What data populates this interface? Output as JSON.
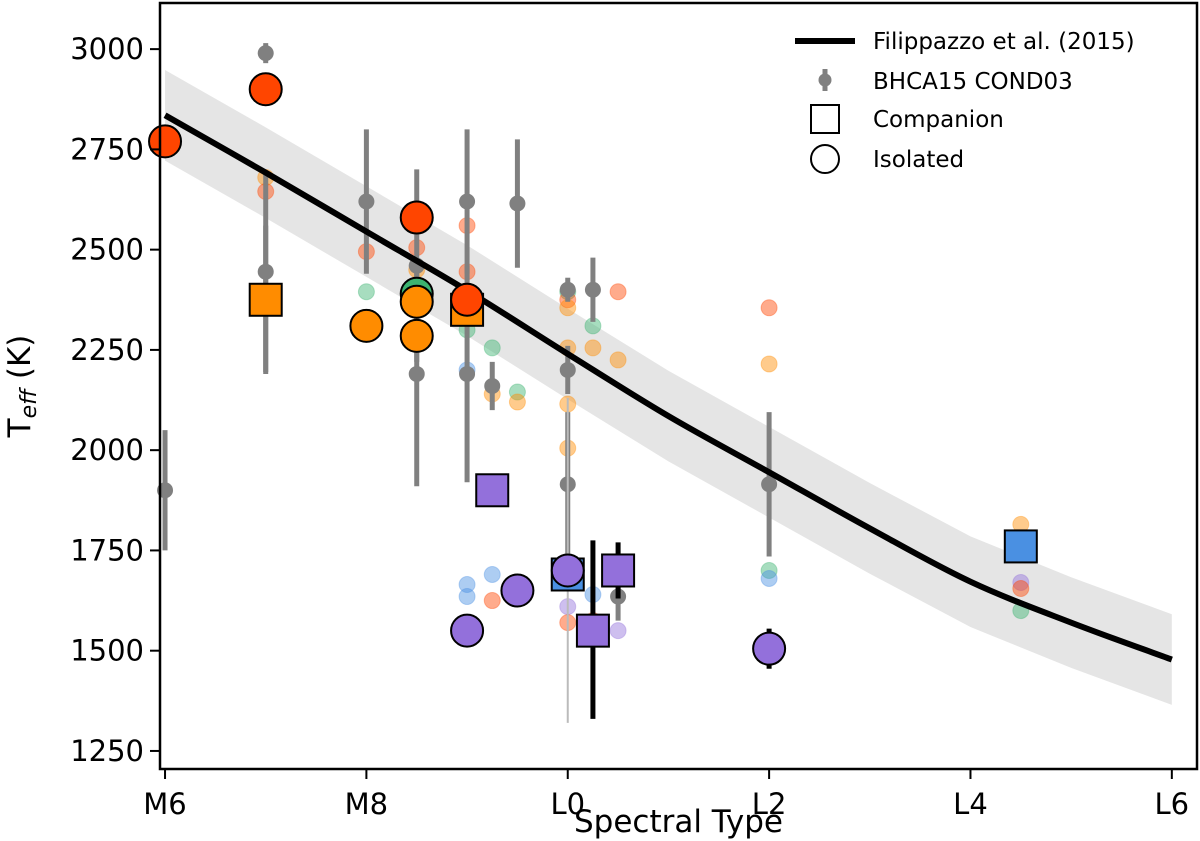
{
  "chart_data": {
    "type": "scatter",
    "title": "",
    "xlabel": "Spectral Type",
    "ylabel": {
      "main": "T",
      "sub": "eff",
      "unit": " (K)"
    },
    "xlim": [
      5.95,
      16.25
    ],
    "ylim": [
      1205,
      3115
    ],
    "xticks": [
      {
        "value": 6,
        "label": "M6"
      },
      {
        "value": 8,
        "label": "M8"
      },
      {
        "value": 10,
        "label": "L0"
      },
      {
        "value": 12,
        "label": "L2"
      },
      {
        "value": 14,
        "label": "L4"
      },
      {
        "value": 16,
        "label": "L6"
      }
    ],
    "yticks": [
      {
        "value": 1250,
        "label": "1250"
      },
      {
        "value": 1500,
        "label": "1500"
      },
      {
        "value": 1750,
        "label": "1750"
      },
      {
        "value": 2000,
        "label": "2000"
      },
      {
        "value": 2250,
        "label": "2250"
      },
      {
        "value": 2500,
        "label": "2500"
      },
      {
        "value": 2750,
        "label": "2750"
      },
      {
        "value": 3000,
        "label": "3000"
      }
    ],
    "colors": {
      "red": "#ff4500",
      "orange": "#ff8c00",
      "purple": "#9370db",
      "blue": "#4a90e2",
      "green": "#3cb371",
      "gray": "#808080",
      "fit": "#000000",
      "band": "#e5e5e5"
    },
    "fit": {
      "name": "Filippazzo et al. (2015)",
      "uncertainty": 113,
      "points": [
        [
          6.0,
          2835
        ],
        [
          7.0,
          2692
        ],
        [
          8.0,
          2545
        ],
        [
          9.0,
          2398
        ],
        [
          10.0,
          2240
        ],
        [
          11.0,
          2085
        ],
        [
          12.0,
          1945
        ],
        [
          13.0,
          1805
        ],
        [
          14.0,
          1672
        ],
        [
          15.0,
          1570
        ],
        [
          16.0,
          1478
        ]
      ]
    },
    "bhca15": {
      "name": "BHCA15 COND03",
      "points": [
        {
          "x": 7.0,
          "y": 2990,
          "err": 25
        },
        {
          "x": 7.0,
          "y": 2445,
          "err": 250
        },
        {
          "x": 6.0,
          "y": 1900,
          "err": 150
        },
        {
          "x": 8.0,
          "y": 2620,
          "err": 180
        },
        {
          "x": 8.5,
          "y": 2460,
          "err": 240
        },
        {
          "x": 8.5,
          "y": 2190,
          "err": 280
        },
        {
          "x": 9.0,
          "y": 2620,
          "err": 180
        },
        {
          "x": 9.0,
          "y": 2190,
          "err": 270
        },
        {
          "x": 9.5,
          "y": 2615,
          "err": 160
        },
        {
          "x": 9.25,
          "y": 2160,
          "err": 60
        },
        {
          "x": 10.0,
          "y": 2400,
          "err": 30
        },
        {
          "x": 10.0,
          "y": 2200,
          "err": 60
        },
        {
          "x": 10.0,
          "y": 1915,
          "err": 180
        },
        {
          "x": 10.25,
          "y": 2400,
          "err": 80
        },
        {
          "x": 10.5,
          "y": 1635,
          "err": 60
        },
        {
          "x": 12.0,
          "y": 1915,
          "err": 180
        }
      ]
    },
    "faint_points": [
      {
        "x": 7.0,
        "y": 2680,
        "color": "orange"
      },
      {
        "x": 7.0,
        "y": 2645,
        "color": "red"
      },
      {
        "x": 8.0,
        "y": 2495,
        "color": "red"
      },
      {
        "x": 8.0,
        "y": 2395,
        "color": "green"
      },
      {
        "x": 8.5,
        "y": 2505,
        "color": "red"
      },
      {
        "x": 8.5,
        "y": 2450,
        "color": "orange"
      },
      {
        "x": 9.0,
        "y": 2560,
        "color": "red"
      },
      {
        "x": 9.0,
        "y": 2445,
        "color": "red"
      },
      {
        "x": 9.0,
        "y": 2300,
        "color": "green"
      },
      {
        "x": 9.0,
        "y": 2200,
        "color": "blue"
      },
      {
        "x": 9.25,
        "y": 2255,
        "color": "green"
      },
      {
        "x": 9.25,
        "y": 2140,
        "color": "orange"
      },
      {
        "x": 9.5,
        "y": 2145,
        "color": "green"
      },
      {
        "x": 9.5,
        "y": 2120,
        "color": "orange"
      },
      {
        "x": 10.0,
        "y": 2395,
        "color": "green"
      },
      {
        "x": 10.0,
        "y": 2375,
        "color": "red"
      },
      {
        "x": 10.0,
        "y": 2355,
        "color": "orange"
      },
      {
        "x": 10.0,
        "y": 2255,
        "color": "orange"
      },
      {
        "x": 10.0,
        "y": 2115,
        "color": "orange"
      },
      {
        "x": 10.0,
        "y": 2005,
        "color": "orange"
      },
      {
        "x": 10.25,
        "y": 2310,
        "color": "green"
      },
      {
        "x": 10.25,
        "y": 2255,
        "color": "orange"
      },
      {
        "x": 10.5,
        "y": 2395,
        "color": "red"
      },
      {
        "x": 10.5,
        "y": 2225,
        "color": "orange"
      },
      {
        "x": 9.0,
        "y": 1665,
        "color": "blue"
      },
      {
        "x": 9.0,
        "y": 1635,
        "color": "blue"
      },
      {
        "x": 9.25,
        "y": 1690,
        "color": "blue"
      },
      {
        "x": 9.25,
        "y": 1625,
        "color": "red"
      },
      {
        "x": 10.0,
        "y": 1610,
        "color": "purple"
      },
      {
        "x": 10.0,
        "y": 1570,
        "color": "red"
      },
      {
        "x": 10.25,
        "y": 1640,
        "color": "blue"
      },
      {
        "x": 10.25,
        "y": 1575,
        "color": "red"
      },
      {
        "x": 10.5,
        "y": 1550,
        "color": "purple"
      },
      {
        "x": 12.0,
        "y": 2355,
        "color": "red"
      },
      {
        "x": 12.0,
        "y": 2215,
        "color": "orange"
      },
      {
        "x": 12.0,
        "y": 1700,
        "color": "green"
      },
      {
        "x": 12.0,
        "y": 1680,
        "color": "blue"
      },
      {
        "x": 14.5,
        "y": 1815,
        "color": "orange"
      },
      {
        "x": 14.5,
        "y": 1670,
        "color": "purple"
      },
      {
        "x": 14.5,
        "y": 1655,
        "color": "red"
      },
      {
        "x": 14.5,
        "y": 1600,
        "color": "green"
      }
    ],
    "companions": [
      {
        "x": 7.0,
        "y": 2375,
        "color": "orange",
        "err": 185,
        "errColor": "gray"
      },
      {
        "x": 9.0,
        "y": 2350,
        "color": "orange",
        "err": 0
      },
      {
        "x": 9.25,
        "y": 1900,
        "color": "purple",
        "err": 0
      },
      {
        "x": 10.0,
        "y": 1690,
        "color": "blue",
        "err": 0
      },
      {
        "x": 10.5,
        "y": 1700,
        "color": "purple",
        "err": 70,
        "errColor": "black"
      },
      {
        "x": 10.25,
        "y": 1550,
        "color": "purple",
        "errLow": 220,
        "errHigh": 225,
        "errColor": "black"
      },
      {
        "x": 14.5,
        "y": 1760,
        "color": "blue",
        "err": 0
      }
    ],
    "isolated": [
      {
        "x": 6.0,
        "y": 2770,
        "color": "red"
      },
      {
        "x": 7.0,
        "y": 2900,
        "color": "red"
      },
      {
        "x": 8.5,
        "y": 2580,
        "color": "red"
      },
      {
        "x": 9.0,
        "y": 2375,
        "color": "red"
      },
      {
        "x": 8.5,
        "y": 2390,
        "color": "green"
      },
      {
        "x": 8.5,
        "y": 2370,
        "color": "orange"
      },
      {
        "x": 8.0,
        "y": 2310,
        "color": "orange"
      },
      {
        "x": 8.5,
        "y": 2285,
        "color": "orange"
      },
      {
        "x": 10.0,
        "y": 1700,
        "color": "purple",
        "errLow": 380,
        "errHigh": 430,
        "errColor": "lightgray"
      },
      {
        "x": 9.5,
        "y": 1650,
        "color": "purple"
      },
      {
        "x": 9.0,
        "y": 1550,
        "color": "purple"
      },
      {
        "x": 12.0,
        "y": 1505,
        "color": "purple",
        "err": 50,
        "errColor": "black"
      }
    ],
    "legend": {
      "position": "top-right",
      "entries": [
        {
          "label": "Filippazzo et al. (2015)",
          "marker": "line"
        },
        {
          "label": "BHCA15 COND03",
          "marker": "errorbar"
        },
        {
          "label": "Companion",
          "marker": "square"
        },
        {
          "label": "Isolated",
          "marker": "circle"
        }
      ]
    }
  }
}
